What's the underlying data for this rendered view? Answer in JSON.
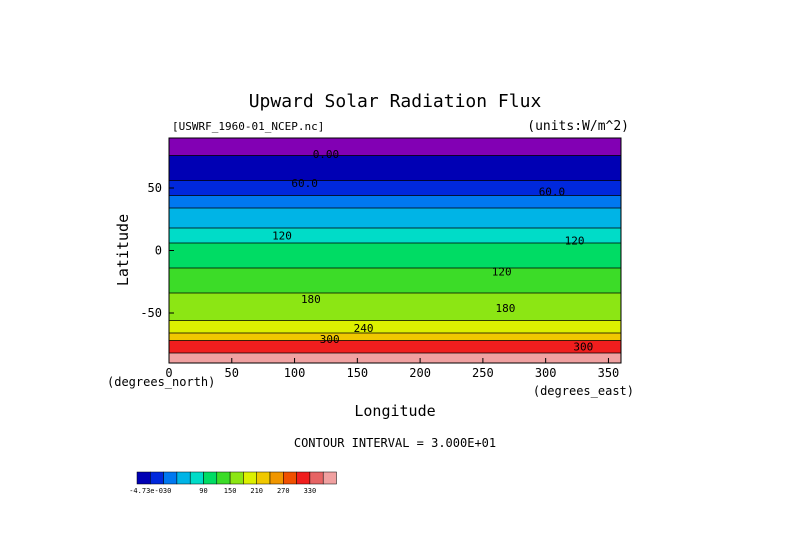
{
  "chart_data": {
    "type": "heatmap",
    "title": "Upward Solar Radiation Flux",
    "file_label": "[USWRF_1960-01_NCEP.nc]",
    "units_label": "(units:W/m^2)",
    "xlabel": "Longitude",
    "ylabel": "Latitude",
    "x_unit_label": "(degrees_east)",
    "y_unit_label": "(degrees_north)",
    "xlim": [
      0,
      360
    ],
    "ylim": [
      -90,
      90
    ],
    "x_ticks": [
      "0",
      "50",
      "100",
      "150",
      "200",
      "250",
      "300",
      "350"
    ],
    "x_tick_values": [
      0,
      50,
      100,
      150,
      200,
      250,
      300,
      350
    ],
    "y_ticks": [
      "50",
      "0",
      "-50"
    ],
    "y_tick_values": [
      50,
      0,
      -50
    ],
    "contour_interval_text": "CONTOUR INTERVAL = 3.000E+01",
    "contour_labels": [
      {
        "text": "0.00",
        "lon": 125,
        "lat": 74
      },
      {
        "text": "60.0",
        "lon": 108,
        "lat": 51
      },
      {
        "text": "60.0",
        "lon": 305,
        "lat": 44
      },
      {
        "text": "120",
        "lon": 90,
        "lat": 9
      },
      {
        "text": "120",
        "lon": 323,
        "lat": 5
      },
      {
        "text": "120",
        "lon": 265,
        "lat": -20
      },
      {
        "text": "180",
        "lon": 113,
        "lat": -42
      },
      {
        "text": "180",
        "lon": 268,
        "lat": -49
      },
      {
        "text": "240",
        "lon": 155,
        "lat": -65
      },
      {
        "text": "300",
        "lon": 128,
        "lat": -74
      },
      {
        "text": "300",
        "lon": 330,
        "lat": -80
      }
    ],
    "colorbar": {
      "tick_labels": [
        "-4.73e-030",
        "90",
        "150",
        "210",
        "270",
        "330"
      ],
      "colors": [
        "#0000b4",
        "#0028dc",
        "#0078f0",
        "#00b4e6",
        "#00dcc8",
        "#00dc64",
        "#3cdc28",
        "#8ce614",
        "#dcf000",
        "#f0c800",
        "#f09600",
        "#f05000",
        "#f01e1e",
        "#e66464",
        "#f0a0a0"
      ]
    },
    "latitude_bands": [
      {
        "lat_top": 90,
        "lat_bottom": 76,
        "color": "#8200b4"
      },
      {
        "lat_top": 76,
        "lat_bottom": 56,
        "color": "#0000b4"
      },
      {
        "lat_top": 56,
        "lat_bottom": 44,
        "color": "#0028dc"
      },
      {
        "lat_top": 44,
        "lat_bottom": 34,
        "color": "#0078f0"
      },
      {
        "lat_top": 34,
        "lat_bottom": 18,
        "color": "#00b4e6"
      },
      {
        "lat_top": 18,
        "lat_bottom": 6,
        "color": "#00dcc8"
      },
      {
        "lat_top": 6,
        "lat_bottom": -14,
        "color": "#00dc64"
      },
      {
        "lat_top": -14,
        "lat_bottom": -34,
        "color": "#3cdc28"
      },
      {
        "lat_top": -34,
        "lat_bottom": -56,
        "color": "#8ce614"
      },
      {
        "lat_top": -56,
        "lat_bottom": -66,
        "color": "#dcf000"
      },
      {
        "lat_top": -66,
        "lat_bottom": -72,
        "color": "#f0c800"
      },
      {
        "lat_top": -72,
        "lat_bottom": -82,
        "color": "#f01e1e"
      },
      {
        "lat_top": -82,
        "lat_bottom": -90,
        "color": "#f0a0a0"
      }
    ]
  }
}
